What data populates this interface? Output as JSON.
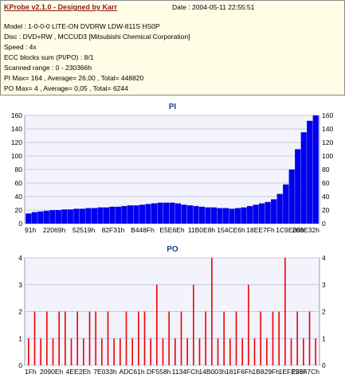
{
  "header": {
    "title": "KProbe v2.1.0 - Designed by Karr",
    "date": "Date : 2004-05-11 22:55:51",
    "lines": [
      "Model : 1-0-0-0 LITE-ON DVDRW LDW-811S   HS0P",
      "Disc : DVD+RW , MCCUD3 [Mitsubishi Chemical Corporation]",
      "Speed : 4x",
      "ECC blocks sum (PI/PO) : 8/1",
      "Scanned range : 0 - 230366h",
      "PI Max= 164 , Average= 26,00 , Total= 448820",
      "PO Max= 4 , Average= 0,05 , Total= 6244"
    ]
  },
  "colors": {
    "pi": "#0000ee",
    "po": "#ee0000",
    "title": "#1d3f8a",
    "grid": "#c8c8e6"
  },
  "chart_data": [
    {
      "type": "bar",
      "title": "PI",
      "ylim": [
        0,
        160
      ],
      "yticks": [
        0,
        20,
        40,
        60,
        80,
        100,
        120,
        140,
        160
      ],
      "xticks": [
        "91h",
        "22069h",
        "52519h",
        "82F31h",
        "B448Fh",
        "E5E6Eh",
        "11B0E8h",
        "154CE6h",
        "18EE7Fh",
        "1C9E09h",
        "203E32h"
      ],
      "series": [
        {
          "values": [
            15,
            17,
            18,
            19,
            20,
            20,
            21,
            21,
            22,
            22,
            23,
            23,
            24,
            24,
            25,
            25,
            26,
            27,
            27,
            28,
            29,
            30,
            31,
            31,
            31,
            30,
            28,
            27,
            26,
            25,
            24,
            24,
            23,
            23,
            22,
            23,
            24,
            26,
            28,
            30,
            32,
            36,
            44,
            58,
            80,
            110,
            135,
            152,
            160
          ]
        }
      ]
    },
    {
      "type": "bar",
      "title": "PO",
      "ylim": [
        0,
        4
      ],
      "yticks": [
        0,
        1,
        2,
        3,
        4
      ],
      "xticks": [
        "1Fh",
        "2090Eh",
        "4EE2Eh",
        "7E033h",
        "ADC61h",
        "DF558h",
        "1134FCh",
        "14B003h",
        "181F6Fh",
        "1B829Fh",
        "1EFE53h",
        "226F7Ch"
      ],
      "series": [
        {
          "values": [
            1,
            2,
            1,
            2,
            1,
            2,
            2,
            1,
            2,
            1,
            2,
            2,
            1,
            2,
            1,
            1,
            2,
            1,
            2,
            2,
            1,
            3,
            1,
            2,
            1,
            2,
            1,
            3,
            1,
            2,
            4,
            1,
            2,
            1,
            2,
            1,
            3,
            1,
            2,
            1,
            2,
            2,
            4,
            1,
            2,
            1,
            2,
            1
          ]
        }
      ]
    }
  ]
}
